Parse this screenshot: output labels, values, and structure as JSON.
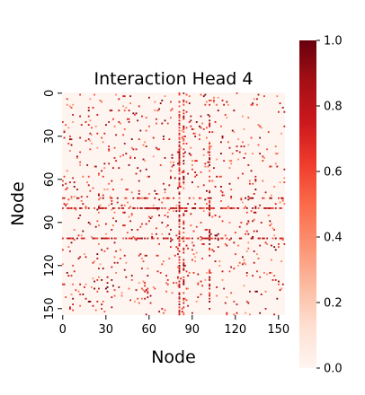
{
  "chart_data": {
    "type": "heatmap",
    "title": "Interaction Head 4",
    "xlabel": "Node",
    "ylabel": "Node",
    "n_nodes": 155,
    "x_ticks": [
      "0",
      "30",
      "60",
      "90",
      "120",
      "150"
    ],
    "x_tick_values": [
      0,
      30,
      60,
      90,
      120,
      150
    ],
    "y_ticks": [
      "0",
      "30",
      "60",
      "90",
      "120",
      "150"
    ],
    "y_tick_values": [
      0,
      30,
      60,
      90,
      120,
      150
    ],
    "colorbar": {
      "cmap": "Reds",
      "vmin": 0.0,
      "vmax": 1.0,
      "ticks": [
        "0.0",
        "0.2",
        "0.4",
        "0.6",
        "0.8",
        "1.0"
      ],
      "tick_values": [
        0.0,
        0.2,
        0.4,
        0.6,
        0.8,
        1.0
      ]
    },
    "background_value": 0.0,
    "dense_rows": [
      {
        "row": 80,
        "density": 0.55,
        "value_range": [
          0.55,
          1.0
        ]
      },
      {
        "row": 101,
        "density": 0.5,
        "value_range": [
          0.55,
          1.0
        ]
      },
      {
        "row": 73,
        "density": 0.3,
        "value_range": [
          0.4,
          1.0
        ]
      }
    ],
    "dense_cols": [
      {
        "col": 81,
        "density": 0.55,
        "value_range": [
          0.55,
          1.0
        ]
      },
      {
        "col": 84,
        "density": 0.35,
        "value_range": [
          0.5,
          1.0
        ]
      },
      {
        "col": 102,
        "density": 0.4,
        "value_range": [
          0.5,
          1.0
        ]
      }
    ],
    "scatter_density": 0.035,
    "scatter_value_range": [
      0.35,
      1.0
    ],
    "seed": 4
  }
}
